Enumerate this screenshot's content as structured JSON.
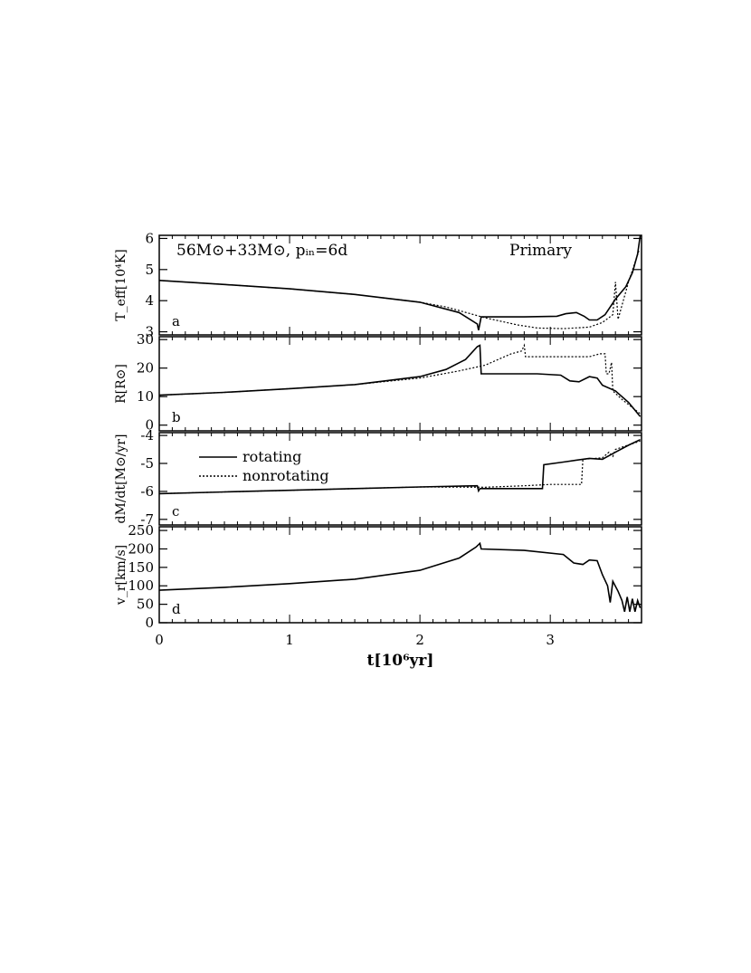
{
  "chart_data": {
    "type": "line",
    "x_axis": {
      "label": "t[10⁶yr]",
      "range": [
        0,
        3.7
      ],
      "ticks": [
        0,
        1,
        2,
        3
      ],
      "tick_labels": [
        "0",
        "1",
        "2",
        "3"
      ]
    },
    "annotations": {
      "title": "56M⊙+33M⊙, pᵢₙ=6d",
      "primary": "Primary"
    },
    "legend": {
      "placement": "upper-left of panel c",
      "entries": [
        {
          "label": "rotating",
          "style": "solid"
        },
        {
          "label": "nonrotating",
          "style": "dotted"
        }
      ]
    },
    "panels": [
      {
        "tag": "a",
        "ylabel": "T_eff[10⁴K]",
        "ylim": [
          2.9,
          6.1
        ],
        "yticks": [
          3,
          4,
          5,
          6
        ],
        "series": [
          {
            "name": "rotating",
            "style": "solid",
            "points": [
              [
                0,
                4.65
              ],
              [
                0.5,
                4.52
              ],
              [
                1,
                4.38
              ],
              [
                1.5,
                4.2
              ],
              [
                2,
                3.95
              ],
              [
                2.3,
                3.62
              ],
              [
                2.44,
                3.25
              ],
              [
                2.45,
                3.05
              ],
              [
                2.47,
                3.48
              ],
              [
                2.8,
                3.48
              ],
              [
                3.05,
                3.5
              ],
              [
                3.12,
                3.58
              ],
              [
                3.2,
                3.62
              ],
              [
                3.26,
                3.5
              ],
              [
                3.3,
                3.38
              ],
              [
                3.36,
                3.38
              ],
              [
                3.42,
                3.55
              ],
              [
                3.5,
                4.05
              ],
              [
                3.58,
                4.45
              ],
              [
                3.63,
                4.9
              ],
              [
                3.67,
                5.5
              ],
              [
                3.69,
                6.1
              ]
            ]
          },
          {
            "name": "nonrotating",
            "style": "dotted",
            "points": [
              [
                0,
                4.65
              ],
              [
                0.5,
                4.52
              ],
              [
                1,
                4.38
              ],
              [
                1.5,
                4.2
              ],
              [
                2,
                3.95
              ],
              [
                2.2,
                3.8
              ],
              [
                2.5,
                3.45
              ],
              [
                2.75,
                3.22
              ],
              [
                2.9,
                3.12
              ],
              [
                3.1,
                3.1
              ],
              [
                3.3,
                3.15
              ],
              [
                3.4,
                3.3
              ],
              [
                3.48,
                3.55
              ],
              [
                3.5,
                4.6
              ],
              [
                3.52,
                3.4
              ],
              [
                3.6,
                4.6
              ],
              [
                3.68,
                5.6
              ]
            ]
          }
        ]
      },
      {
        "tag": "b",
        "ylabel": "R[R⊙]",
        "ylim": [
          -2,
          31
        ],
        "yticks": [
          0,
          10,
          20,
          30
        ],
        "series": [
          {
            "name": "rotating",
            "style": "solid",
            "points": [
              [
                0,
                10.5
              ],
              [
                0.5,
                11.5
              ],
              [
                1,
                12.8
              ],
              [
                1.5,
                14.2
              ],
              [
                2,
                17
              ],
              [
                2.2,
                19.5
              ],
              [
                2.35,
                23
              ],
              [
                2.44,
                27.5
              ],
              [
                2.46,
                28
              ],
              [
                2.47,
                18
              ],
              [
                2.9,
                18
              ],
              [
                3.08,
                17.5
              ],
              [
                3.15,
                15.5
              ],
              [
                3.22,
                15.2
              ],
              [
                3.3,
                17
              ],
              [
                3.36,
                16.5
              ],
              [
                3.4,
                14
              ],
              [
                3.5,
                12
              ],
              [
                3.6,
                8
              ],
              [
                3.69,
                3
              ]
            ]
          },
          {
            "name": "nonrotating",
            "style": "dotted",
            "points": [
              [
                0,
                10.5
              ],
              [
                0.5,
                11.5
              ],
              [
                1,
                12.8
              ],
              [
                1.5,
                14.2
              ],
              [
                2,
                16.5
              ],
              [
                2.3,
                19
              ],
              [
                2.5,
                21
              ],
              [
                2.7,
                25
              ],
              [
                2.78,
                26
              ],
              [
                2.8,
                28
              ],
              [
                2.81,
                24
              ],
              [
                3.3,
                24
              ],
              [
                3.38,
                25
              ],
              [
                3.42,
                25
              ],
              [
                3.43,
                18
              ],
              [
                3.45,
                18
              ],
              [
                3.47,
                22
              ],
              [
                3.48,
                12
              ],
              [
                3.55,
                9
              ],
              [
                3.69,
                4
              ]
            ]
          }
        ]
      },
      {
        "tag": "c",
        "ylabel": "dM/dt[M⊙/yr]",
        "ylim": [
          -7.2,
          -3.9
        ],
        "yticks": [
          -7,
          -6,
          -5,
          -4
        ],
        "series": [
          {
            "name": "rotating",
            "style": "solid",
            "points": [
              [
                0,
                -6.08
              ],
              [
                0.5,
                -6.02
              ],
              [
                1,
                -5.96
              ],
              [
                1.5,
                -5.9
              ],
              [
                2,
                -5.84
              ],
              [
                2.44,
                -5.8
              ],
              [
                2.45,
                -5.98
              ],
              [
                2.46,
                -5.9
              ],
              [
                2.94,
                -5.9
              ],
              [
                2.95,
                -5.05
              ],
              [
                3.1,
                -4.95
              ],
              [
                3.3,
                -4.82
              ],
              [
                3.4,
                -4.85
              ],
              [
                3.5,
                -4.6
              ],
              [
                3.6,
                -4.35
              ],
              [
                3.69,
                -4.15
              ]
            ]
          },
          {
            "name": "nonrotating",
            "style": "dotted",
            "points": [
              [
                0,
                -6.08
              ],
              [
                0.5,
                -6.02
              ],
              [
                1,
                -5.96
              ],
              [
                1.5,
                -5.9
              ],
              [
                2,
                -5.84
              ],
              [
                2.5,
                -5.85
              ],
              [
                2.8,
                -5.8
              ],
              [
                3,
                -5.75
              ],
              [
                3.24,
                -5.75
              ],
              [
                3.25,
                -4.85
              ],
              [
                3.4,
                -4.8
              ],
              [
                3.45,
                -4.6
              ],
              [
                3.48,
                -4.75
              ],
              [
                3.5,
                -4.5
              ],
              [
                3.69,
                -4.2
              ]
            ]
          }
        ]
      },
      {
        "tag": "d",
        "ylabel": "v_r[km/s]",
        "ylim": [
          0,
          260
        ],
        "yticks": [
          0,
          50,
          100,
          150,
          200,
          250
        ],
        "series": [
          {
            "name": "rotating",
            "style": "solid",
            "points": [
              [
                0,
                88
              ],
              [
                0.5,
                96
              ],
              [
                1,
                106
              ],
              [
                1.5,
                118
              ],
              [
                2,
                142
              ],
              [
                2.3,
                175
              ],
              [
                2.43,
                205
              ],
              [
                2.46,
                215
              ],
              [
                2.47,
                200
              ],
              [
                2.8,
                196
              ],
              [
                3.1,
                185
              ],
              [
                3.18,
                162
              ],
              [
                3.25,
                158
              ],
              [
                3.3,
                170
              ],
              [
                3.36,
                168
              ],
              [
                3.4,
                130
              ],
              [
                3.44,
                100
              ],
              [
                3.46,
                55
              ],
              [
                3.48,
                112
              ],
              [
                3.52,
                85
              ],
              [
                3.55,
                60
              ],
              [
                3.57,
                30
              ],
              [
                3.59,
                70
              ],
              [
                3.61,
                30
              ],
              [
                3.63,
                65
              ],
              [
                3.65,
                30
              ],
              [
                3.67,
                60
              ],
              [
                3.69,
                40
              ]
            ]
          }
        ]
      }
    ]
  }
}
